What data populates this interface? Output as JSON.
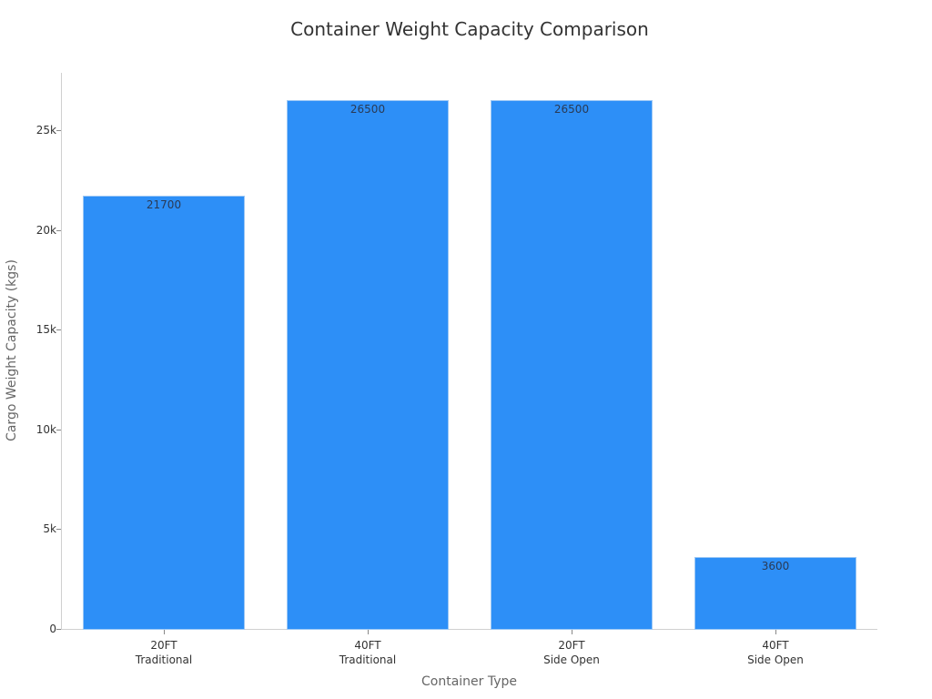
{
  "chart_data": {
    "type": "bar",
    "title": "Container Weight Capacity Comparison",
    "xlabel": "Container Type",
    "ylabel": "Cargo Weight Capacity (kgs)",
    "categories": [
      "20FT\nTraditional",
      "40FT\nTraditional",
      "20FT\nSide Open",
      "40FT\nSide Open"
    ],
    "category_lines": [
      [
        "20FT",
        "Traditional"
      ],
      [
        "40FT",
        "Traditional"
      ],
      [
        "20FT",
        "Side Open"
      ],
      [
        "40FT",
        "Side Open"
      ]
    ],
    "values": [
      21700,
      26500,
      26500,
      3600
    ],
    "data_labels": [
      "21700",
      "26500",
      "26500",
      "3600"
    ],
    "yticks": [
      0,
      5000,
      10000,
      15000,
      20000,
      25000
    ],
    "ytick_labels": [
      "0",
      "5k",
      "10k",
      "15k",
      "20k",
      "25k"
    ],
    "ylim": [
      0,
      27900
    ],
    "grid": false,
    "legend": null,
    "bar_color": "#2d8ff7"
  }
}
